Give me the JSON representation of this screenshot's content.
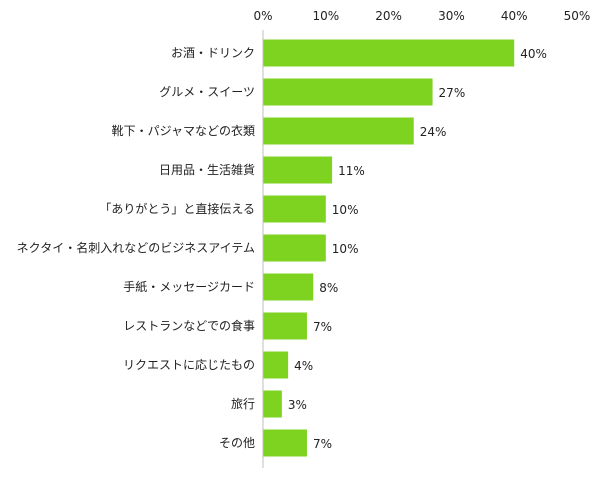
{
  "chart_data": {
    "type": "bar",
    "orientation": "horizontal",
    "title": "",
    "xlabel": "",
    "ylabel": "",
    "xlim": [
      0,
      50
    ],
    "x_ticks": [
      "0%",
      "10%",
      "20%",
      "30%",
      "40%",
      "50%"
    ],
    "x_tick_values": [
      0,
      10,
      20,
      30,
      40,
      50
    ],
    "x_axis_position": "top",
    "grid": false,
    "legend": "none",
    "bar_color": "#7ED321",
    "categories": [
      "お酒・ドリンク",
      "グルメ・スイーツ",
      "靴下・パジャマなどの衣類",
      "日用品・生活雑貨",
      "「ありがとう」と直接伝える",
      "ネクタイ・名刺入れなどのビジネスアイテム",
      "手紙・メッセージカード",
      "レストランなどでの食事",
      "リクエストに応じたもの",
      "旅行",
      "その他"
    ],
    "values": [
      40,
      27,
      24,
      11,
      10,
      10,
      8,
      7,
      4,
      3,
      7
    ],
    "value_labels": [
      "40%",
      "27%",
      "24%",
      "11%",
      "10%",
      "10%",
      "8%",
      "7%",
      "4%",
      "3%",
      "7%"
    ]
  }
}
